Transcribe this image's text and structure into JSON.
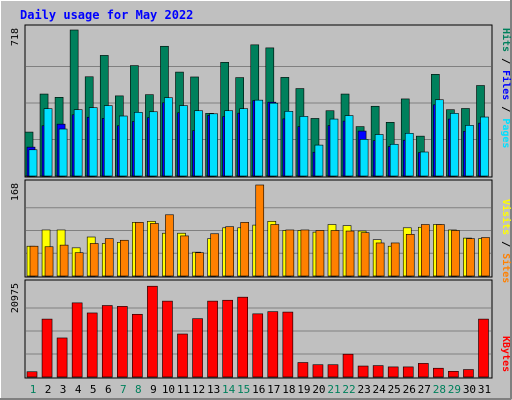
{
  "chart_data": [
    {
      "type": "bar",
      "title": "Daily usage for May 2022",
      "panel": "hits-files-pages",
      "ylabel_parts": [
        "Pages",
        "Files",
        "Hits"
      ],
      "ymax_label": "718",
      "categories": [
        "1",
        "2",
        "3",
        "4",
        "5",
        "6",
        "7",
        "8",
        "9",
        "10",
        "11",
        "12",
        "13",
        "14",
        "15",
        "16",
        "17",
        "18",
        "19",
        "20",
        "21",
        "22",
        "23",
        "24",
        "25",
        "26",
        "27",
        "28",
        "29",
        "30",
        "31"
      ],
      "ylim": [
        0,
        718
      ],
      "series": [
        {
          "name": "Hits",
          "color": "#00805c",
          "values": [
            216,
            403,
            387,
            718,
            488,
            593,
            394,
            543,
            400,
            638,
            511,
            487,
            308,
            559,
            484,
            645,
            630,
            485,
            430,
            283,
            321,
            403,
            243,
            343,
            264,
            379,
            196,
            500,
            326,
            332,
            445
          ]
        },
        {
          "name": "Files",
          "color": "#0000ff",
          "values": [
            142,
            247,
            255,
            301,
            289,
            283,
            247,
            268,
            287,
            360,
            311,
            223,
            298,
            292,
            309,
            371,
            363,
            281,
            243,
            117,
            248,
            270,
            221,
            174,
            145,
            176,
            115,
            350,
            280,
            220,
            260
          ]
        },
        {
          "name": "Pages",
          "color": "#00e0ff",
          "values": [
            129,
            331,
            231,
            326,
            336,
            346,
            295,
            313,
            316,
            385,
            346,
            321,
            306,
            321,
            331,
            373,
            358,
            318,
            293,
            152,
            280,
            297,
            180,
            204,
            156,
            210,
            118,
            375,
            308,
            249,
            290
          ]
        }
      ]
    },
    {
      "type": "bar",
      "panel": "visits-sites",
      "ylabel_parts": [
        "Sites",
        "Visits"
      ],
      "ymax_label": "168",
      "categories": [
        "1",
        "2",
        "3",
        "4",
        "5",
        "6",
        "7",
        "8",
        "9",
        "10",
        "11",
        "12",
        "13",
        "14",
        "15",
        "16",
        "17",
        "18",
        "19",
        "20",
        "21",
        "22",
        "23",
        "24",
        "25",
        "26",
        "27",
        "28",
        "29",
        "30",
        "31"
      ],
      "ylim": [
        0,
        168
      ],
      "series": [
        {
          "name": "Visits",
          "color": "#ffff00",
          "values": [
            55,
            85,
            85,
            52,
            72,
            60,
            62,
            99,
            101,
            79,
            79,
            44,
            69,
            89,
            89,
            94,
            101,
            84,
            84,
            81,
            95,
            93,
            83,
            67,
            55,
            89,
            90,
            95,
            85,
            70,
            69
          ]
        },
        {
          "name": "Sites",
          "color": "#ff8000",
          "values": [
            55,
            54,
            57,
            43,
            60,
            69,
            66,
            99,
            97,
            113,
            74,
            43,
            78,
            91,
            99,
            168,
            95,
            85,
            85,
            84,
            84,
            83,
            80,
            61,
            61,
            77,
            95,
            95,
            84,
            69,
            71
          ]
        }
      ]
    },
    {
      "type": "bar",
      "panel": "kbytes",
      "ylabel_parts": [
        "KBytes"
      ],
      "ymax_label": "20975",
      "categories": [
        "1",
        "2",
        "3",
        "4",
        "5",
        "6",
        "7",
        "8",
        "9",
        "10",
        "11",
        "12",
        "13",
        "14",
        "15",
        "16",
        "17",
        "18",
        "19",
        "20",
        "21",
        "22",
        "23",
        "24",
        "25",
        "26",
        "27",
        "28",
        "29",
        "30",
        "31"
      ],
      "weekend_days": [
        "1",
        "7",
        "8",
        "14",
        "15",
        "21",
        "22",
        "28",
        "29"
      ],
      "ylim": [
        0,
        20975
      ],
      "series": [
        {
          "name": "KBytes",
          "color": "#ff0000",
          "values": [
            1200,
            13200,
            8900,
            16900,
            14600,
            16300,
            16100,
            14300,
            20700,
            17300,
            9800,
            13300,
            17300,
            17500,
            18200,
            14400,
            14900,
            14800,
            3300,
            2800,
            2800,
            5200,
            2500,
            2600,
            2300,
            2300,
            3100,
            2000,
            1300,
            1700,
            13200
          ]
        }
      ]
    }
  ],
  "colors": {
    "background": "#c0c0c0",
    "title": "#0000ff",
    "gridline": "#808080",
    "weekday_label": "#000000",
    "weekend_label": "#00805c"
  }
}
